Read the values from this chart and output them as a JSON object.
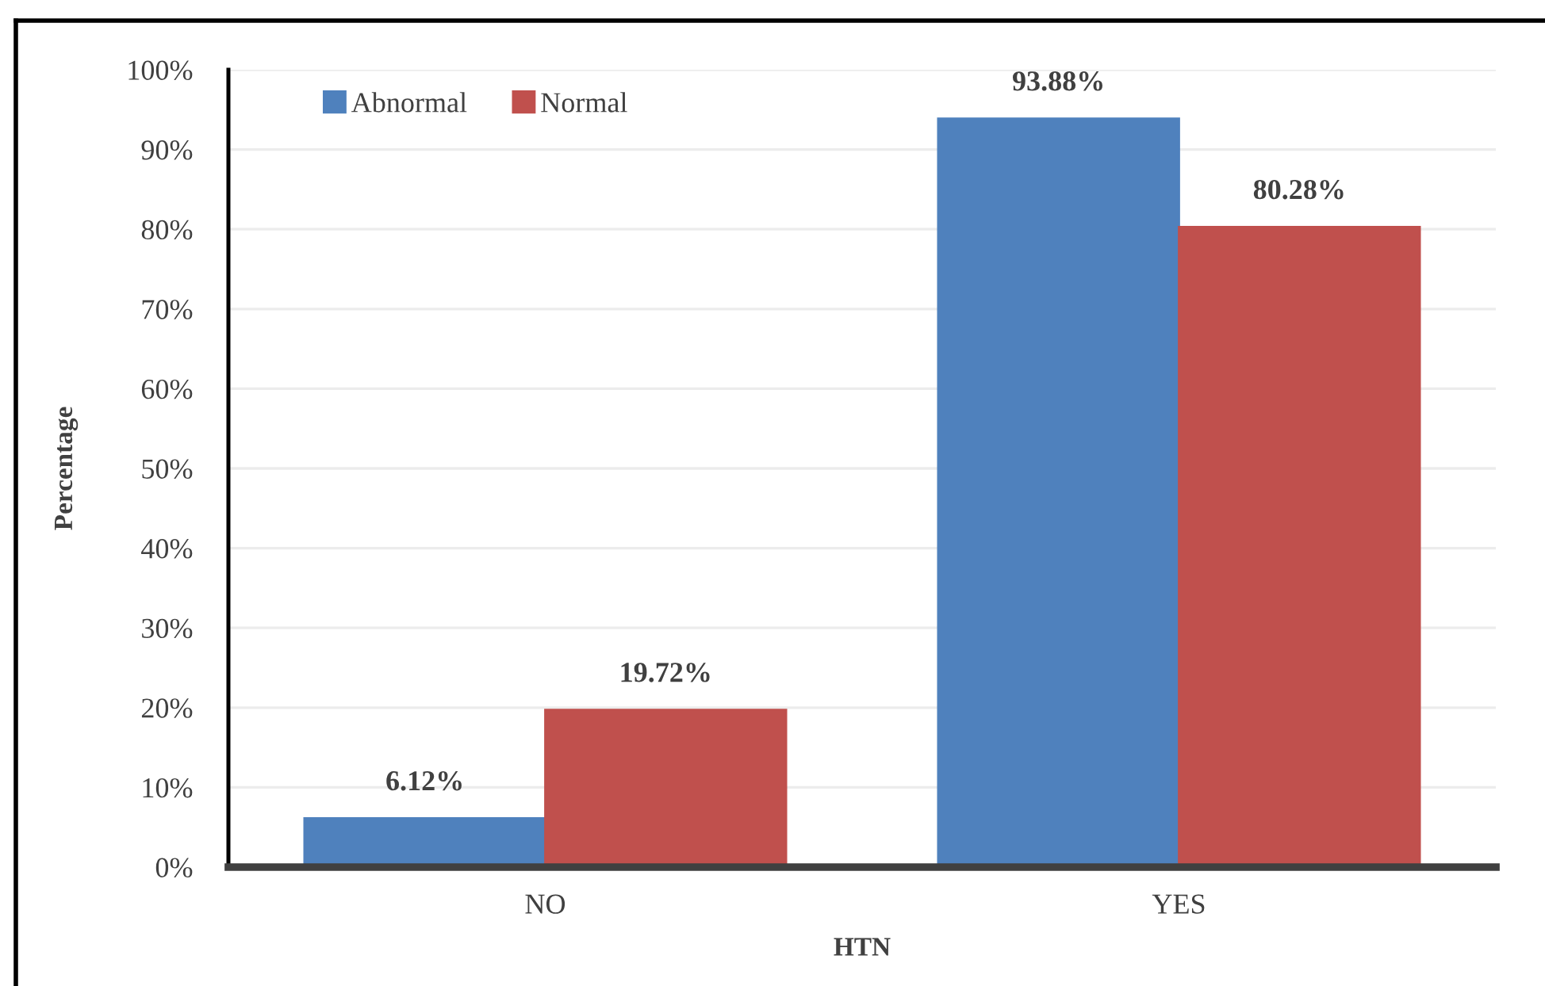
{
  "chart_data": {
    "type": "bar",
    "xlabel": "HTN",
    "ylabel": "Percentage",
    "categories": [
      "NO",
      "YES"
    ],
    "series": [
      {
        "name": "Abnormal",
        "color": "#4f81bd",
        "values": [
          6.12,
          93.88
        ],
        "value_labels": [
          "6.12%",
          "93.88%"
        ]
      },
      {
        "name": "Normal",
        "color": "#c0504d",
        "values": [
          19.72,
          80.28
        ],
        "value_labels": [
          "19.72%",
          "80.28%"
        ]
      }
    ],
    "ylim": [
      0,
      100
    ],
    "yticks": [
      {
        "value": 0,
        "label": "0%"
      },
      {
        "value": 10,
        "label": "10%"
      },
      {
        "value": 20,
        "label": "20%"
      },
      {
        "value": 30,
        "label": "30%"
      },
      {
        "value": 40,
        "label": "40%"
      },
      {
        "value": 50,
        "label": "50%"
      },
      {
        "value": 60,
        "label": "60%"
      },
      {
        "value": 70,
        "label": "70%"
      },
      {
        "value": 80,
        "label": "80%"
      },
      {
        "value": 90,
        "label": "90%"
      },
      {
        "value": 100,
        "label": "100%"
      }
    ],
    "grid": "y",
    "legend": "top left"
  }
}
